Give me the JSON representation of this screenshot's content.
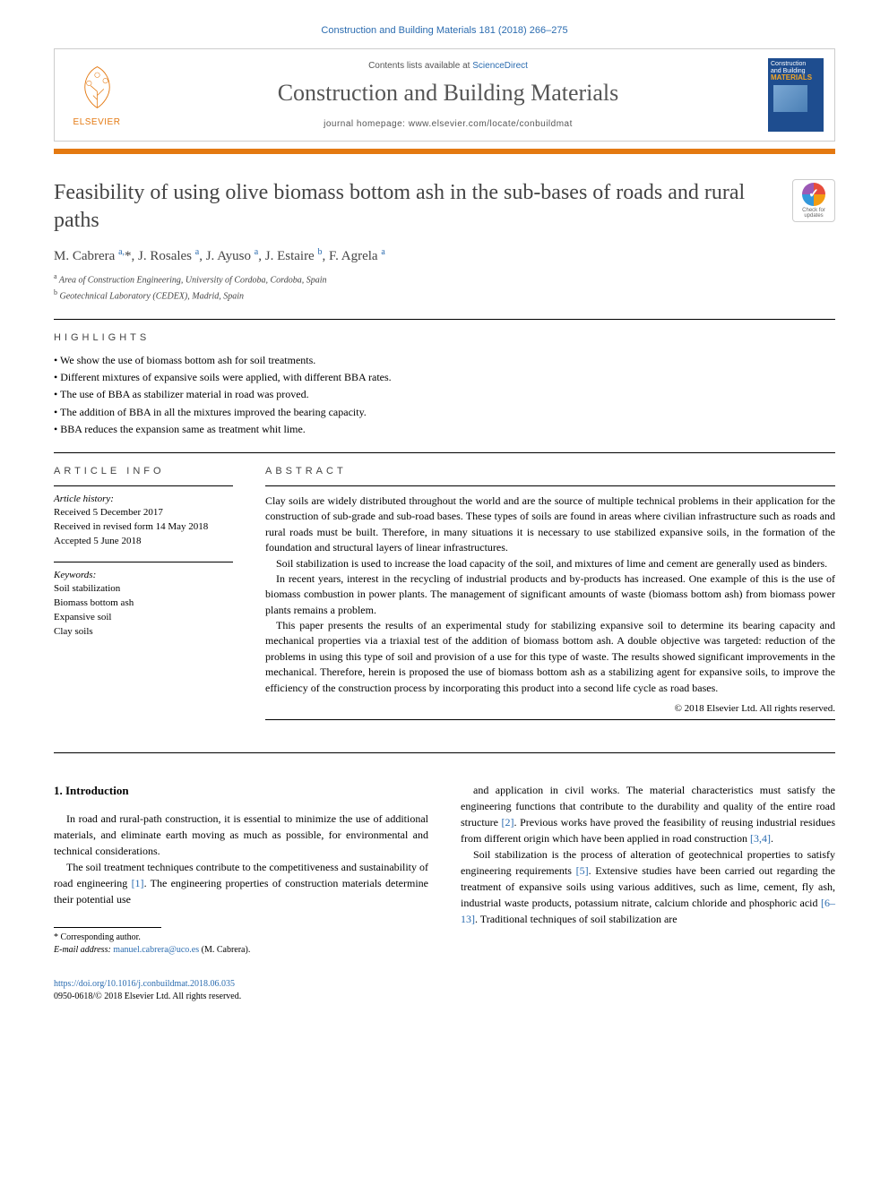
{
  "citation": "Construction and Building Materials 181 (2018) 266–275",
  "header": {
    "publisher": "ELSEVIER",
    "contents_prefix": "Contents lists available at ",
    "contents_link": "ScienceDirect",
    "journal_name": "Construction and Building Materials",
    "homepage_prefix": "journal homepage: ",
    "homepage_url": "www.elsevier.com/locate/conbuildmat",
    "cover_line1": "Construction",
    "cover_line2": "and Building",
    "cover_line3": "MATERIALS"
  },
  "crossmark": {
    "label1": "Check for",
    "label2": "updates"
  },
  "article": {
    "title": "Feasibility of using olive biomass bottom ash in the sub-bases of roads and rural paths",
    "authors_html": "M. Cabrera <sup>a,</sup>*, J. Rosales <sup>a</sup>, J. Ayuso <sup>a</sup>, J. Estaire <sup>b</sup>, F. Agrela <sup>a</sup>",
    "affiliations": [
      "Area of Construction Engineering, University of Cordoba, Cordoba, Spain",
      "Geotechnical Laboratory (CEDEX), Madrid, Spain"
    ],
    "aff_marks": [
      "a",
      "b"
    ]
  },
  "highlights_label": "highlights",
  "highlights": [
    "We show the use of biomass bottom ash for soil treatments.",
    "Different mixtures of expansive soils were applied, with different BBA rates.",
    "The use of BBA as stabilizer material in road was proved.",
    "The addition of BBA in all the mixtures improved the bearing capacity.",
    "BBA reduces the expansion same as treatment whit lime."
  ],
  "info": {
    "label": "article info",
    "history_head": "Article history:",
    "history": [
      "Received 5 December 2017",
      "Received in revised form 14 May 2018",
      "Accepted 5 June 2018"
    ],
    "keywords_head": "Keywords:",
    "keywords": [
      "Soil stabilization",
      "Biomass bottom ash",
      "Expansive soil",
      "Clay soils"
    ]
  },
  "abstract": {
    "label": "abstract",
    "paragraphs": [
      "Clay soils are widely distributed throughout the world and are the source of multiple technical problems in their application for the construction of sub-grade and sub-road bases. These types of soils are found in areas where civilian infrastructure such as roads and rural roads must be built. Therefore, in many situations it is necessary to use stabilized expansive soils, in the formation of the foundation and structural layers of linear infrastructures.",
      "Soil stabilization is used to increase the load capacity of the soil, and mixtures of lime and cement are generally used as binders.",
      "In recent years, interest in the recycling of industrial products and by-products has increased. One example of this is the use of biomass combustion in power plants. The management of significant amounts of waste (biomass bottom ash) from biomass power plants remains a problem.",
      "This paper presents the results of an experimental study for stabilizing expansive soil to determine its bearing capacity and mechanical properties via a triaxial test of the addition of biomass bottom ash. A double objective was targeted: reduction of the problems in using this type of soil and provision of a use for this type of waste. The results showed significant improvements in the mechanical. Therefore, herein is proposed the use of biomass bottom ash as a stabilizing agent for expansive soils, to improve the efficiency of the construction process by incorporating this product into a second life cycle as road bases."
    ],
    "copyright": "© 2018 Elsevier Ltd. All rights reserved."
  },
  "body": {
    "section_num": "1.",
    "section_title": "Introduction",
    "left": [
      "In road and rural-path construction, it is essential to minimize the use of additional materials, and eliminate earth moving as much as possible, for environmental and technical considerations.",
      "The soil treatment techniques contribute to the competitiveness and sustainability of road engineering [1]. The engineering properties of construction materials determine their potential use"
    ],
    "right": [
      "and application in civil works. The material characteristics must satisfy the engineering functions that contribute to the durability and quality of the entire road structure [2]. Previous works have proved the feasibility of reusing industrial residues from different origin which have been applied in road construction [3,4].",
      "Soil stabilization is the process of alteration of geotechnical properties to satisfy engineering requirements [5]. Extensive studies have been carried out regarding the treatment of expansive soils using various additives, such as lime, cement, fly ash, industrial waste products, potassium nitrate, calcium chloride and phosphoric acid [6–13]. Traditional techniques of soil stabilization are"
    ]
  },
  "footnote": {
    "corr": "* Corresponding author.",
    "email_label": "E-mail address: ",
    "email": "manuel.cabrera@uco.es",
    "email_author": " (M. Cabrera)."
  },
  "doi": {
    "url": "https://doi.org/10.1016/j.conbuildmat.2018.06.035",
    "issn_line": "0950-0618/© 2018 Elsevier Ltd. All rights reserved."
  },
  "colors": {
    "link": "#2b6cb0",
    "accent": "#e47911",
    "cover_bg": "#1e4d8f"
  }
}
